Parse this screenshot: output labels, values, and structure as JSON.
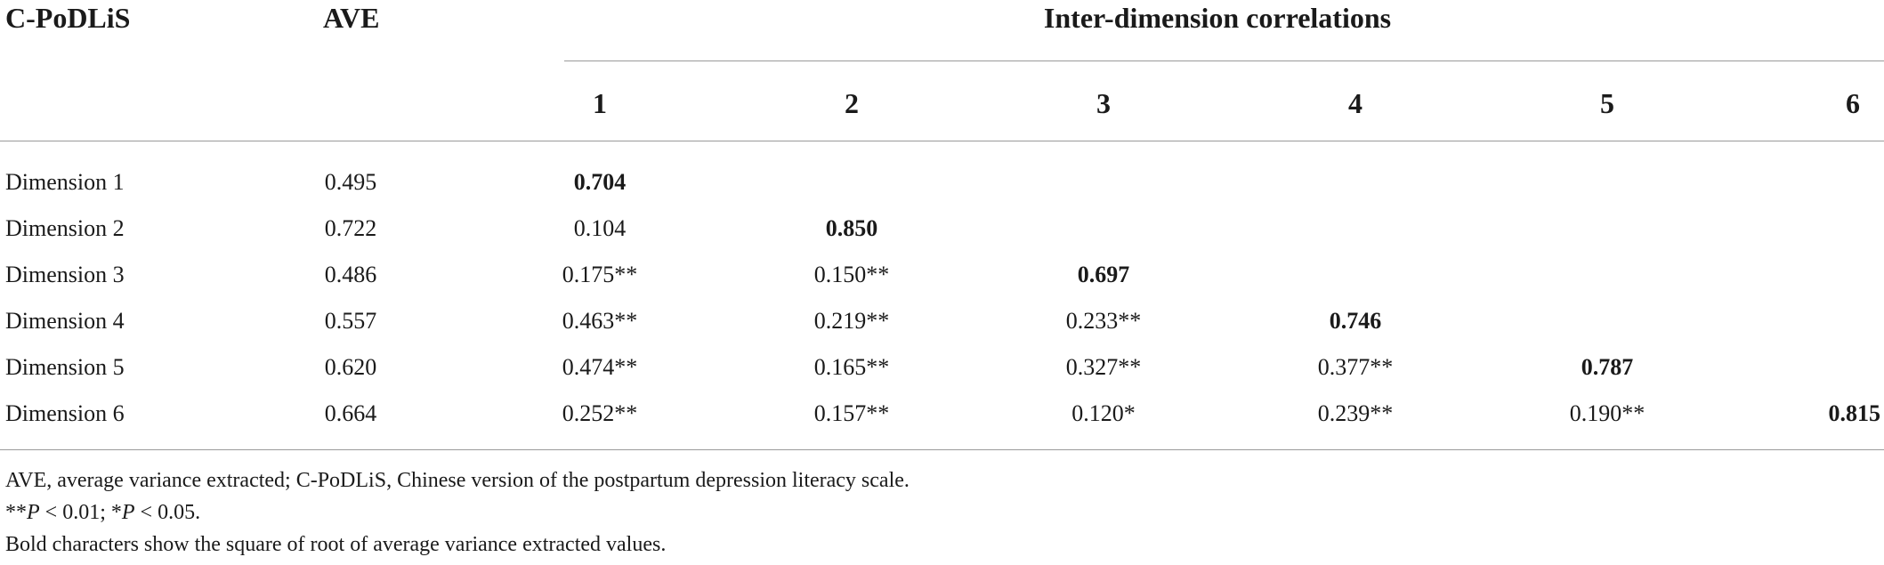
{
  "table": {
    "header": {
      "col_scale": "C-PoDLiS",
      "col_ave": "AVE",
      "group_label": "Inter-dimension correlations",
      "dims": [
        "1",
        "2",
        "3",
        "4",
        "5",
        "6"
      ]
    },
    "rows": [
      {
        "label": "Dimension 1",
        "ave": "0.495",
        "cells": [
          "0.704",
          "",
          "",
          "",
          "",
          ""
        ]
      },
      {
        "label": "Dimension 2",
        "ave": "0.722",
        "cells": [
          "0.104",
          "0.850",
          "",
          "",
          "",
          ""
        ]
      },
      {
        "label": "Dimension 3",
        "ave": "0.486",
        "cells": [
          "0.175**",
          "0.150**",
          "0.697",
          "",
          "",
          ""
        ]
      },
      {
        "label": "Dimension 4",
        "ave": "0.557",
        "cells": [
          "0.463**",
          "0.219**",
          "0.233**",
          "0.746",
          "",
          ""
        ]
      },
      {
        "label": "Dimension 5",
        "ave": "0.620",
        "cells": [
          "0.474**",
          "0.165**",
          "0.327**",
          "0.377**",
          "0.787",
          ""
        ]
      },
      {
        "label": "Dimension 6",
        "ave": "0.664",
        "cells": [
          "0.252**",
          "0.157**",
          "0.120*",
          "0.239**",
          "0.190**",
          "0.815"
        ]
      }
    ]
  },
  "footnotes": {
    "abbrev": "AVE, average variance extracted; C-PoDLiS, Chinese version of the postpartum depression literacy scale.",
    "sig_a_prefix": "**",
    "sig_a_p": "P",
    "sig_a_rest": " < 0.01; *",
    "sig_b_p": "P",
    "sig_b_rest": " < 0.05.",
    "bold_note": "Bold characters show the square of root of average variance extracted values."
  }
}
